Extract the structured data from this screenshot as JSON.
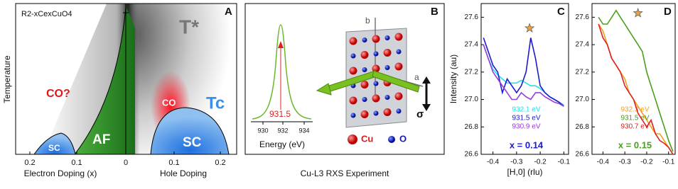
{
  "panel_a": {
    "label": "A",
    "formula": "R2-xCexCuO4",
    "t_star": "T*",
    "co_question": "CO?",
    "co": "CO",
    "tc": "Tc",
    "sc_left": "SC",
    "af": "AF",
    "sc_right": "SC",
    "ylabel": "Temperature",
    "xticks": [
      "0.2",
      "0.1",
      "0",
      "0.1",
      "0.2"
    ],
    "xlabel_left": "Electron Doping  (x)",
    "xlabel_right": "Hole Doping"
  },
  "panel_b": {
    "label": "B",
    "peak_label": "931.5",
    "xticks": [
      "930",
      "932",
      "934"
    ],
    "xlabel": "Energy (eV)",
    "axis_b": "b",
    "axis_a": "a",
    "polarization": "σ",
    "legend_cu": "Cu",
    "legend_o": "O",
    "caption": "Cu-L3 RXS Experiment"
  },
  "chart_data": [
    {
      "type": "line",
      "panel_label": "C",
      "ylabel": "Intensity (au)",
      "xlabel": "[H,0]  (rlu)",
      "annotation": "x = 0.14",
      "annotation_color": "#1a1ad0",
      "x": [
        -0.44,
        -0.42,
        -0.4,
        -0.38,
        -0.36,
        -0.34,
        -0.32,
        -0.3,
        -0.28,
        -0.26,
        -0.24,
        -0.22,
        -0.2,
        -0.18,
        -0.16,
        -0.14,
        -0.12,
        -0.1
      ],
      "series": [
        {
          "name": "932.1 eV",
          "color": "#22e0f0",
          "values": [
            27.4,
            27.3,
            27.22,
            27.18,
            27.15,
            27.12,
            27.12,
            27.12,
            27.14,
            27.12,
            27.1,
            27.1,
            27.08,
            27.05,
            27.02,
            27.0,
            26.98,
            26.96
          ]
        },
        {
          "name": "931.5 eV",
          "color": "#1a1ad0",
          "values": [
            27.45,
            27.35,
            27.25,
            27.2,
            27.05,
            27.15,
            27.1,
            27.05,
            27.1,
            27.2,
            27.45,
            27.3,
            27.1,
            27.05,
            27.02,
            27.0,
            26.98,
            26.95
          ]
        },
        {
          "name": "930.9 eV",
          "color": "#9a3ad8",
          "values": [
            27.4,
            27.3,
            27.2,
            27.15,
            27.1,
            27.05,
            27.0,
            27.0,
            27.05,
            27.02,
            27.0,
            27.05,
            27.05,
            27.02,
            27.0,
            26.98,
            26.97,
            26.95
          ]
        }
      ],
      "star": {
        "x": -0.245,
        "y": 27.52
      },
      "xlim": [
        -0.45,
        -0.08
      ],
      "ylim": [
        26.6,
        27.7
      ],
      "xticks": [
        -0.4,
        -0.3,
        -0.2,
        -0.1
      ],
      "yticks": [
        26.6,
        26.8,
        {
          "value": 27,
          "label": "27.0"
        },
        27.2,
        27.4,
        27.6
      ]
    },
    {
      "type": "line",
      "panel_label": "D",
      "annotation": "x = 0.15",
      "annotation_color": "#4aa01a",
      "x": [
        -0.42,
        -0.4,
        -0.38,
        -0.36,
        -0.34,
        -0.32,
        -0.3,
        -0.28,
        -0.26,
        -0.24,
        -0.22,
        -0.2,
        -0.18,
        -0.16,
        -0.14,
        -0.12,
        -0.1,
        -0.08
      ],
      "series": [
        {
          "name": "932.3 eV",
          "color": "#f0a020",
          "values": [
            27.55,
            27.5,
            27.4,
            27.3,
            27.25,
            27.2,
            27.15,
            27.05,
            27.0,
            26.95,
            26.9,
            26.85,
            26.8,
            26.75,
            26.75,
            26.7,
            26.65,
            26.6
          ]
        },
        {
          "name": "931.5 eV",
          "color": "#4aa01a",
          "values": [
            27.6,
            27.55,
            27.55,
            27.6,
            27.65,
            27.6,
            27.55,
            27.5,
            27.45,
            27.4,
            27.35,
            27.2,
            27.1,
            27.0,
            26.9,
            26.8,
            26.7,
            26.62
          ]
        },
        {
          "name": "930.7 eV",
          "color": "#e02020",
          "values": [
            27.55,
            27.45,
            27.4,
            27.3,
            27.25,
            27.2,
            27.1,
            27.05,
            27.0,
            26.9,
            26.85,
            26.8,
            26.85,
            26.75,
            26.7,
            26.68,
            26.65,
            26.6
          ]
        }
      ],
      "star": {
        "x": -0.24,
        "y": 27.63
      },
      "xlim": [
        -0.45,
        -0.07
      ],
      "ylim": [
        26.6,
        27.7
      ],
      "xticks": [
        -0.4,
        -0.3,
        -0.2,
        -0.1
      ],
      "yticks": [
        26.6,
        26.8,
        {
          "value": 27,
          "label": "27.0"
        },
        27.2,
        27.4,
        27.6
      ]
    }
  ]
}
